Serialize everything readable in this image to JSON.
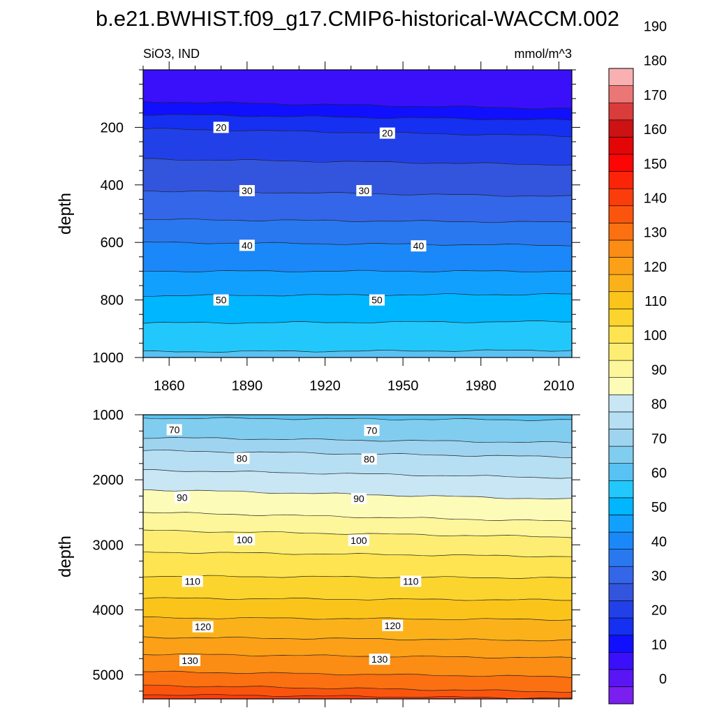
{
  "figure": {
    "title": "b.e21.BWHIST.f09_g17.CMIP6-historical-WACCM.002",
    "variable_label": "SiO3, IND",
    "units_label": "mmol/m^3"
  },
  "chart_data": [
    {
      "type": "heatmap",
      "subtype": "filled-contour",
      "panel": "upper",
      "title": "SiO3, IND",
      "units": "mmol/m^3",
      "xlabel": "",
      "ylabel": "depth",
      "xlim": [
        1850,
        2015
      ],
      "ylim": [
        1000,
        0
      ],
      "xticks": [
        1860,
        1890,
        1920,
        1950,
        1980,
        2010
      ],
      "yticks": [
        200,
        400,
        600,
        800,
        1000
      ],
      "contour_levels": [
        {
          "value": 10,
          "depth_start": 110,
          "depth_end": 135
        },
        {
          "value": 15,
          "depth_start": 155,
          "depth_end": 175
        },
        {
          "value": 20,
          "depth_start": 205,
          "depth_end": 230
        },
        {
          "value": 25,
          "depth_start": 310,
          "depth_end": 330
        },
        {
          "value": 30,
          "depth_start": 420,
          "depth_end": 440
        },
        {
          "value": 35,
          "depth_start": 520,
          "depth_end": 530
        },
        {
          "value": 40,
          "depth_start": 600,
          "depth_end": 610
        },
        {
          "value": 45,
          "depth_start": 700,
          "depth_end": 700
        },
        {
          "value": 50,
          "depth_start": 785,
          "depth_end": 780
        },
        {
          "value": 55,
          "depth_start": 880,
          "depth_end": 875
        },
        {
          "value": 60,
          "depth_start": 980,
          "depth_end": 975
        }
      ],
      "contour_labels": [
        {
          "text": "20",
          "x": 1880,
          "depth": 200
        },
        {
          "text": "20",
          "x": 1944,
          "depth": 220
        },
        {
          "text": "30",
          "x": 1890,
          "depth": 420
        },
        {
          "text": "30",
          "x": 1935,
          "depth": 420
        },
        {
          "text": "40",
          "x": 1890,
          "depth": 610
        },
        {
          "text": "40",
          "x": 1956,
          "depth": 612
        },
        {
          "text": "50",
          "x": 1880,
          "depth": 800
        },
        {
          "text": "50",
          "x": 1940,
          "depth": 800
        }
      ]
    },
    {
      "type": "heatmap",
      "subtype": "filled-contour",
      "panel": "lower",
      "xlabel": "",
      "ylabel": "depth",
      "xlim": [
        1850,
        2015
      ],
      "ylim": [
        5370,
        1000
      ],
      "yticks": [
        1000,
        2000,
        3000,
        4000,
        5000
      ],
      "contour_levels": [
        {
          "value": 65,
          "depth_start": 1050,
          "depth_end": 1080
        },
        {
          "value": 70,
          "depth_start": 1350,
          "depth_end": 1430
        },
        {
          "value": 75,
          "depth_start": 1550,
          "depth_end": 1650
        },
        {
          "value": 80,
          "depth_start": 1850,
          "depth_end": 1970
        },
        {
          "value": 85,
          "depth_start": 2150,
          "depth_end": 2300
        },
        {
          "value": 90,
          "depth_start": 2500,
          "depth_end": 2640
        },
        {
          "value": 95,
          "depth_start": 2780,
          "depth_end": 2880
        },
        {
          "value": 100,
          "depth_start": 3110,
          "depth_end": 3180
        },
        {
          "value": 105,
          "depth_start": 3480,
          "depth_end": 3510
        },
        {
          "value": 110,
          "depth_start": 3820,
          "depth_end": 3850
        },
        {
          "value": 115,
          "depth_start": 4120,
          "depth_end": 4150
        },
        {
          "value": 120,
          "depth_start": 4420,
          "depth_end": 4470
        },
        {
          "value": 125,
          "depth_start": 4680,
          "depth_end": 4740
        },
        {
          "value": 130,
          "depth_start": 4950,
          "depth_end": 5030
        },
        {
          "value": 135,
          "depth_start": 5160,
          "depth_end": 5260
        },
        {
          "value": 140,
          "depth_start": 5300,
          "depth_end": 5360
        }
      ],
      "contour_labels": [
        {
          "text": "70",
          "x": 1862,
          "depth": 1230
        },
        {
          "text": "70",
          "x": 1938,
          "depth": 1240
        },
        {
          "text": "80",
          "x": 1888,
          "depth": 1670
        },
        {
          "text": "80",
          "x": 1937,
          "depth": 1680
        },
        {
          "text": "90",
          "x": 1865,
          "depth": 2270
        },
        {
          "text": "90",
          "x": 1933,
          "depth": 2290
        },
        {
          "text": "100",
          "x": 1889,
          "depth": 2920
        },
        {
          "text": "100",
          "x": 1933,
          "depth": 2930
        },
        {
          "text": "110",
          "x": 1869,
          "depth": 3560
        },
        {
          "text": "110",
          "x": 1953,
          "depth": 3560
        },
        {
          "text": "120",
          "x": 1873,
          "depth": 4260
        },
        {
          "text": "120",
          "x": 1946,
          "depth": 4240
        },
        {
          "text": "130",
          "x": 1868,
          "depth": 4780
        },
        {
          "text": "130",
          "x": 1941,
          "depth": 4760
        }
      ]
    }
  ],
  "colorbar": {
    "tick_labels": [
      "0",
      "10",
      "20",
      "30",
      "40",
      "50",
      "60",
      "70",
      "80",
      "90",
      "100",
      "110",
      "120",
      "130",
      "140",
      "150",
      "160",
      "170",
      "180",
      "190"
    ],
    "tick_values": [
      0,
      10,
      20,
      30,
      40,
      50,
      60,
      70,
      80,
      90,
      100,
      110,
      120,
      130,
      140,
      150,
      160,
      170,
      180,
      190
    ],
    "levels_min": -5,
    "levels_step": 5,
    "colors": [
      "#7a1ff0",
      "#5a15f5",
      "#3a10fa",
      "#1010ff",
      "#1530f0",
      "#2240e8",
      "#3355dd",
      "#3366e8",
      "#2a78f0",
      "#1a88f8",
      "#12a0ff",
      "#00b6ff",
      "#22c8fb",
      "#58c2f2",
      "#80cdf0",
      "#9fd4f0",
      "#b6dff3",
      "#c9e6f5",
      "#fdfbb8",
      "#fdf69a",
      "#fdee73",
      "#fde450",
      "#fbd42e",
      "#fac41a",
      "#fbb21a",
      "#fba017",
      "#fb8c14",
      "#fb7010",
      "#fb550d",
      "#fb3c0b",
      "#fc2408",
      "#fb0505",
      "#e30606",
      "#cc1212",
      "#da3c3c",
      "#eb7676",
      "#f8b0b0"
    ]
  }
}
